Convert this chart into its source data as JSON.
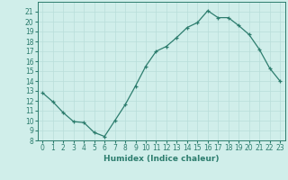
{
  "xlabel": "Humidex (Indice chaleur)",
  "ylabel": "",
  "x": [
    0,
    1,
    2,
    3,
    4,
    5,
    6,
    7,
    8,
    9,
    10,
    11,
    12,
    13,
    14,
    15,
    16,
    17,
    18,
    19,
    20,
    21,
    22,
    23
  ],
  "y": [
    12.8,
    11.9,
    10.8,
    9.9,
    9.8,
    8.8,
    8.4,
    10.0,
    11.6,
    13.5,
    15.5,
    17.0,
    17.5,
    18.4,
    19.4,
    19.9,
    21.1,
    20.4,
    20.4,
    19.6,
    18.7,
    17.2,
    15.3,
    14.0
  ],
  "line_color": "#2d7d6e",
  "marker": "+",
  "marker_color": "#2d7d6e",
  "background_color": "#d0eeea",
  "grid_color": "#b8ddd9",
  "tick_color": "#2d7d6e",
  "label_color": "#2d7d6e",
  "ylim": [
    8,
    22
  ],
  "xlim": [
    -0.5,
    23.5
  ],
  "yticks": [
    8,
    9,
    10,
    11,
    12,
    13,
    14,
    15,
    16,
    17,
    18,
    19,
    20,
    21
  ],
  "xticks": [
    0,
    1,
    2,
    3,
    4,
    5,
    6,
    7,
    8,
    9,
    10,
    11,
    12,
    13,
    14,
    15,
    16,
    17,
    18,
    19,
    20,
    21,
    22,
    23
  ],
  "label_fontsize": 6.5,
  "tick_fontsize": 5.5
}
